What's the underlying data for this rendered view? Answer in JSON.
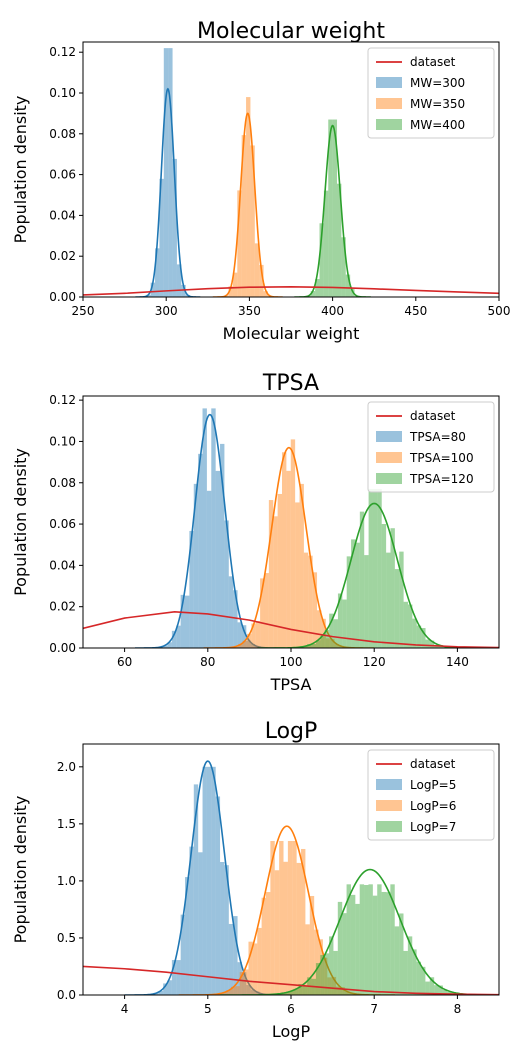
{
  "colors": {
    "dataset": "#d62728",
    "s1": "#1f77b4",
    "s2": "#ff7f0e",
    "s3": "#2ca02c"
  },
  "chart_data": [
    {
      "type": "histogram",
      "title": "Molecular weight",
      "xlabel": "Molecular weight",
      "ylabel": "Population density",
      "xlim": [
        250,
        500
      ],
      "ylim": [
        0,
        0.125
      ],
      "xticks": [
        "250",
        "300",
        "350",
        "400",
        "450",
        "500"
      ],
      "yticks": [
        "0.00",
        "0.02",
        "0.04",
        "0.06",
        "0.08",
        "0.10",
        "0.12"
      ],
      "legend_position": "top-right",
      "series": [
        {
          "name": "dataset",
          "kind": "line",
          "color": "#d62728",
          "x": [
            250,
            275,
            300,
            325,
            350,
            375,
            400,
            425,
            450,
            475,
            500
          ],
          "y": [
            0.001,
            0.0018,
            0.003,
            0.0041,
            0.0048,
            0.005,
            0.0047,
            0.004,
            0.0032,
            0.0025,
            0.0018
          ]
        },
        {
          "name": "MW=300",
          "kind": "hist+kde",
          "color": "#1f77b4",
          "center": 301,
          "sd": 3.9,
          "peak": 0.102,
          "max_bar": 0.122
        },
        {
          "name": "MW=350",
          "kind": "hist+kde",
          "color": "#ff7f0e",
          "center": 349,
          "sd": 4.2,
          "peak": 0.09,
          "max_bar": 0.098
        },
        {
          "name": "MW=400",
          "kind": "hist+kde",
          "color": "#2ca02c",
          "center": 400,
          "sd": 4.6,
          "peak": 0.084,
          "max_bar": 0.087
        }
      ]
    },
    {
      "type": "histogram",
      "title": "TPSA",
      "xlabel": "TPSA",
      "ylabel": "Population density",
      "xlim": [
        50,
        150
      ],
      "ylim": [
        0,
        0.122
      ],
      "xticks": [
        "60",
        "80",
        "100",
        "120",
        "140"
      ],
      "yticks": [
        "0.00",
        "0.02",
        "0.04",
        "0.06",
        "0.08",
        "0.10",
        "0.12"
      ],
      "legend_position": "top-right",
      "series": [
        {
          "name": "dataset",
          "kind": "line",
          "color": "#d62728",
          "x": [
            50,
            60,
            72,
            80,
            90,
            100,
            110,
            120,
            130,
            140,
            150
          ],
          "y": [
            0.0095,
            0.0145,
            0.0175,
            0.0165,
            0.0135,
            0.009,
            0.0055,
            0.003,
            0.0015,
            0.0006,
            0.0002
          ]
        },
        {
          "name": "TPSA=80",
          "kind": "hist+kde",
          "color": "#1f77b4",
          "center": 80.5,
          "sd": 3.6,
          "peak": 0.113,
          "max_bar": 0.116
        },
        {
          "name": "TPSA=100",
          "kind": "hist+kde",
          "color": "#ff7f0e",
          "center": 99.5,
          "sd": 4.1,
          "peak": 0.097,
          "max_bar": 0.101
        },
        {
          "name": "TPSA=120",
          "kind": "hist+kde",
          "color": "#2ca02c",
          "center": 120,
          "sd": 5.6,
          "peak": 0.07,
          "max_bar": 0.077
        }
      ]
    },
    {
      "type": "histogram",
      "title": "LogP",
      "xlabel": "LogP",
      "ylabel": "Population density",
      "xlim": [
        3.5,
        8.5
      ],
      "ylim": [
        0,
        2.2
      ],
      "xticks": [
        "4",
        "5",
        "6",
        "7",
        "8"
      ],
      "yticks": [
        "0.0",
        "0.5",
        "1.0",
        "1.5",
        "2.0"
      ],
      "legend_position": "top-right",
      "series": [
        {
          "name": "dataset",
          "kind": "line",
          "color": "#d62728",
          "x": [
            3.5,
            4.0,
            4.5,
            5.0,
            5.5,
            6.0,
            6.5,
            7.0,
            7.5,
            8.0,
            8.5
          ],
          "y": [
            0.25,
            0.23,
            0.2,
            0.16,
            0.12,
            0.09,
            0.06,
            0.03,
            0.015,
            0.007,
            0.003
          ]
        },
        {
          "name": "LogP=5",
          "kind": "hist+kde",
          "color": "#1f77b4",
          "center": 5.0,
          "sd": 0.2,
          "peak": 2.05,
          "max_bar": 2.0
        },
        {
          "name": "LogP=6",
          "kind": "hist+kde",
          "color": "#ff7f0e",
          "center": 5.95,
          "sd": 0.26,
          "peak": 1.48,
          "max_bar": 1.35
        },
        {
          "name": "LogP=7",
          "kind": "hist+kde",
          "color": "#2ca02c",
          "center": 6.95,
          "sd": 0.36,
          "peak": 1.1,
          "max_bar": 0.97
        }
      ]
    }
  ]
}
